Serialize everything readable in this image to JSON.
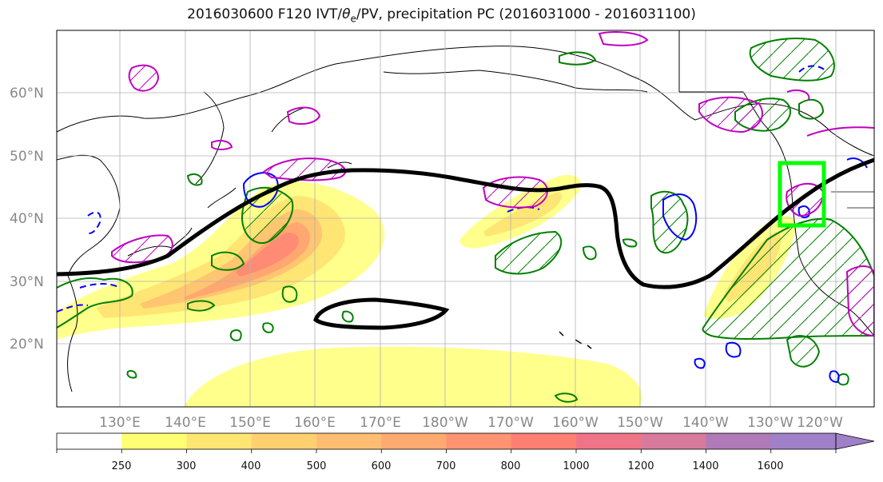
{
  "title_main": "2016030600 F120 IVT/",
  "title_theta": "θ",
  "title_sub": "e",
  "title_rest": "/PV, precipitation PC (2016031000 - 2016031100)",
  "lat_labels": [
    {
      "lat": 60,
      "text": "60°N"
    },
    {
      "lat": 50,
      "text": "50°N"
    },
    {
      "lat": 40,
      "text": "40°N"
    },
    {
      "lat": 30,
      "text": "30°N"
    },
    {
      "lat": 20,
      "text": "20°N"
    }
  ],
  "lon_labels": [
    {
      "lon": 130,
      "text": "130°E"
    },
    {
      "lon": 140,
      "text": "140°E"
    },
    {
      "lon": 150,
      "text": "150°E"
    },
    {
      "lon": 160,
      "text": "160°E"
    },
    {
      "lon": 170,
      "text": "170°E"
    },
    {
      "lon": 180,
      "text": "180°W"
    },
    {
      "lon": 190,
      "text": "170°W"
    },
    {
      "lon": 200,
      "text": "160°W"
    },
    {
      "lon": 210,
      "text": "150°W"
    },
    {
      "lon": 220,
      "text": "140°W"
    },
    {
      "lon": 230,
      "text": "130°W"
    },
    {
      "lon": 240,
      "text": "120°W"
    }
  ],
  "colorbar": {
    "levels": [
      "250",
      "300",
      "400",
      "500",
      "600",
      "700",
      "800",
      "1000",
      "1200",
      "1400",
      "1600"
    ],
    "colors": [
      "#ffffff",
      "#ffff73",
      "#ffe672",
      "#ffd070",
      "#ffbd72",
      "#ffaa70",
      "#ff9372",
      "#ff8072",
      "#f07488",
      "#d87a9c",
      "#b07ab8",
      "#a080c8"
    ]
  },
  "colors": {
    "ivt_line": "#000000",
    "pv_positive": "#008000",
    "pv_negative": "#0000ff",
    "theta_e": "#c000c0",
    "target_box": "#00ff00",
    "coast": "#000000",
    "grid": "#b0b0b0"
  },
  "target_box": {
    "lon_min": 235,
    "lon_max": 242,
    "lat_min": 39,
    "lat_max": 49
  }
}
